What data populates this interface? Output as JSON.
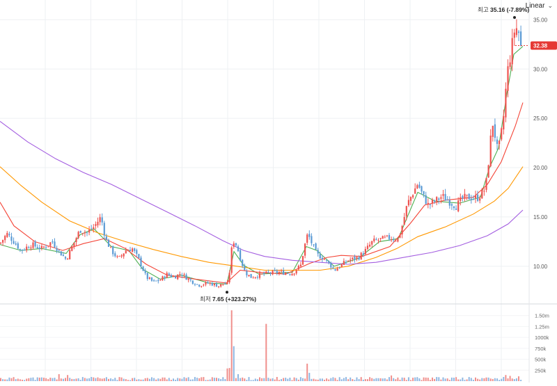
{
  "scale_toggle": {
    "label": "Linear"
  },
  "markers": {
    "high": {
      "prefix": "최고",
      "text": "35.16 (-7.89%)"
    },
    "low": {
      "prefix": "최저",
      "text": "7.65 (+323.27%)"
    }
  },
  "chart_data": {
    "type": "candlestick",
    "last_price_label": "32.38",
    "price_axis": {
      "ticks": [
        "35.00",
        "30.00",
        "25.00",
        "20.00",
        "15.00",
        "10.00"
      ],
      "values": [
        35,
        30,
        25,
        20,
        15,
        10
      ],
      "ylim": [
        6.25,
        37.0
      ]
    },
    "volume_axis": {
      "ticks": [
        "1.50m",
        "1.25m",
        "1000k",
        "750k",
        "500k",
        "250k"
      ],
      "values": [
        1500000,
        1250000,
        1000000,
        750000,
        500000,
        250000
      ],
      "ylim": [
        0,
        1750000
      ]
    },
    "price_keypoints": [
      [
        0,
        12.3
      ],
      [
        10,
        13.3
      ],
      [
        20,
        12.5
      ],
      [
        30,
        11.6
      ],
      [
        45,
        12.2
      ],
      [
        60,
        11.8
      ],
      [
        75,
        12.5
      ],
      [
        85,
        11.5
      ],
      [
        95,
        10.7
      ],
      [
        105,
        12.2
      ],
      [
        115,
        13.7
      ],
      [
        125,
        13.4
      ],
      [
        135,
        14.0
      ],
      [
        145,
        15.0
      ],
      [
        152,
        12.7
      ],
      [
        160,
        11.6
      ],
      [
        170,
        10.7
      ],
      [
        180,
        11.6
      ],
      [
        190,
        11.8
      ],
      [
        200,
        10.6
      ],
      [
        210,
        8.9
      ],
      [
        220,
        8.4
      ],
      [
        230,
        8.6
      ],
      [
        240,
        9.2
      ],
      [
        250,
        8.9
      ],
      [
        260,
        9.3
      ],
      [
        270,
        8.7
      ],
      [
        285,
        8.1
      ],
      [
        300,
        8.3
      ],
      [
        315,
        8.0
      ],
      [
        322,
        8.3
      ],
      [
        326,
        8.0
      ],
      [
        330,
        9.6
      ],
      [
        334,
        12.7
      ],
      [
        340,
        12.1
      ],
      [
        346,
        10.6
      ],
      [
        352,
        9.4
      ],
      [
        360,
        8.9
      ],
      [
        372,
        9.1
      ],
      [
        385,
        9.3
      ],
      [
        400,
        9.4
      ],
      [
        420,
        9.3
      ],
      [
        432,
        10.1
      ],
      [
        437,
        11.9
      ],
      [
        442,
        13.3
      ],
      [
        448,
        12.3
      ],
      [
        455,
        11.2
      ],
      [
        465,
        10.8
      ],
      [
        475,
        10.1
      ],
      [
        480,
        9.6
      ],
      [
        490,
        10.1
      ],
      [
        500,
        10.6
      ],
      [
        515,
        10.9
      ],
      [
        525,
        11.6
      ],
      [
        535,
        12.5
      ],
      [
        545,
        12.7
      ],
      [
        560,
        12.9
      ],
      [
        572,
        12.7
      ],
      [
        578,
        14.2
      ],
      [
        585,
        16.3
      ],
      [
        592,
        17.3
      ],
      [
        600,
        18.4
      ],
      [
        607,
        17.2
      ],
      [
        615,
        16.2
      ],
      [
        625,
        16.6
      ],
      [
        635,
        17.1
      ],
      [
        645,
        16.6
      ],
      [
        655,
        16.1
      ],
      [
        665,
        16.9
      ],
      [
        675,
        17.0
      ],
      [
        685,
        16.9
      ],
      [
        695,
        17.6
      ],
      [
        700,
        19.0
      ],
      [
        703,
        22.0
      ],
      [
        708,
        24.6
      ],
      [
        714,
        21.9
      ],
      [
        718,
        22.3
      ],
      [
        724,
        25.6
      ],
      [
        728,
        29.3
      ],
      [
        732,
        31.0
      ],
      [
        736,
        32.6
      ],
      [
        740,
        34.4
      ],
      [
        745,
        33.7
      ],
      [
        748,
        32.2
      ],
      [
        751,
        32.4
      ]
    ],
    "moving_averages": [
      {
        "color": "#4caf50",
        "points": [
          [
            0,
            12.2
          ],
          [
            30,
            11.6
          ],
          [
            60,
            11.8
          ],
          [
            95,
            11.3
          ],
          [
            115,
            13.2
          ],
          [
            135,
            13.8
          ],
          [
            160,
            12.0
          ],
          [
            185,
            11.6
          ],
          [
            205,
            9.7
          ],
          [
            230,
            8.7
          ],
          [
            260,
            9.1
          ],
          [
            300,
            8.3
          ],
          [
            326,
            8.2
          ],
          [
            336,
            11.5
          ],
          [
            350,
            10.1
          ],
          [
            372,
            9.2
          ],
          [
            420,
            9.4
          ],
          [
            440,
            12.0
          ],
          [
            455,
            11.6
          ],
          [
            480,
            10.0
          ],
          [
            515,
            10.8
          ],
          [
            545,
            12.5
          ],
          [
            572,
            12.8
          ],
          [
            585,
            15.0
          ],
          [
            600,
            17.5
          ],
          [
            625,
            16.6
          ],
          [
            660,
            16.4
          ],
          [
            690,
            17.0
          ],
          [
            703,
            20.0
          ],
          [
            716,
            22.0
          ],
          [
            728,
            27.5
          ],
          [
            738,
            31.5
          ],
          [
            751,
            32.3
          ]
        ]
      },
      {
        "color": "#f44336",
        "points": [
          [
            0,
            16.5
          ],
          [
            20,
            14.1
          ],
          [
            50,
            12.5
          ],
          [
            90,
            11.6
          ],
          [
            120,
            12.3
          ],
          [
            150,
            12.8
          ],
          [
            180,
            11.8
          ],
          [
            210,
            10.2
          ],
          [
            240,
            9.1
          ],
          [
            280,
            8.7
          ],
          [
            325,
            8.3
          ],
          [
            345,
            9.6
          ],
          [
            370,
            9.4
          ],
          [
            410,
            9.2
          ],
          [
            445,
            10.3
          ],
          [
            470,
            10.9
          ],
          [
            490,
            11.1
          ],
          [
            520,
            11.0
          ],
          [
            560,
            12.0
          ],
          [
            590,
            14.4
          ],
          [
            610,
            16.2
          ],
          [
            640,
            16.7
          ],
          [
            680,
            17.0
          ],
          [
            700,
            18.3
          ],
          [
            720,
            20.6
          ],
          [
            740,
            24.2
          ],
          [
            751,
            26.6
          ]
        ]
      },
      {
        "color": "#ff9800",
        "points": [
          [
            0,
            20.1
          ],
          [
            30,
            18.2
          ],
          [
            60,
            16.5
          ],
          [
            100,
            14.6
          ],
          [
            140,
            13.4
          ],
          [
            180,
            12.5
          ],
          [
            220,
            11.7
          ],
          [
            260,
            11.0
          ],
          [
            300,
            10.4
          ],
          [
            340,
            10.0
          ],
          [
            380,
            9.6
          ],
          [
            420,
            9.6
          ],
          [
            460,
            9.6
          ],
          [
            500,
            10.0
          ],
          [
            540,
            10.9
          ],
          [
            570,
            11.8
          ],
          [
            600,
            13.0
          ],
          [
            640,
            14.0
          ],
          [
            680,
            15.3
          ],
          [
            710,
            16.6
          ],
          [
            730,
            17.9
          ],
          [
            751,
            20.1
          ]
        ]
      },
      {
        "color": "#a35de0",
        "points": [
          [
            0,
            24.7
          ],
          [
            40,
            22.6
          ],
          [
            80,
            20.9
          ],
          [
            120,
            19.5
          ],
          [
            160,
            18.3
          ],
          [
            200,
            16.9
          ],
          [
            240,
            15.5
          ],
          [
            280,
            14.1
          ],
          [
            320,
            12.6
          ],
          [
            350,
            11.6
          ],
          [
            380,
            11.0
          ],
          [
            420,
            10.6
          ],
          [
            460,
            10.4
          ],
          [
            500,
            10.2
          ],
          [
            540,
            10.4
          ],
          [
            580,
            10.9
          ],
          [
            620,
            11.4
          ],
          [
            660,
            12.1
          ],
          [
            700,
            13.1
          ],
          [
            730,
            14.3
          ],
          [
            751,
            15.7
          ]
        ]
      }
    ],
    "volume_spikes": [
      [
        331,
        1620000,
        "up"
      ],
      [
        334,
        800000,
        "down"
      ],
      [
        330,
        300000,
        "up"
      ],
      [
        326,
        290000,
        "up"
      ],
      [
        340,
        160000,
        "down"
      ],
      [
        380,
        1310000,
        "up"
      ],
      [
        439,
        400000,
        "up"
      ],
      [
        442,
        190000,
        "down"
      ],
      [
        84,
        160000,
        "up"
      ],
      [
        97,
        140000,
        "up"
      ],
      [
        560,
        130000,
        "up"
      ],
      [
        724,
        140000,
        "up"
      ],
      [
        732,
        120000,
        "up"
      ],
      [
        745,
        110000,
        "up"
      ]
    ],
    "volume_baseline": 60000,
    "colors": {
      "up": "#ef5350",
      "down": "#5b9bd5",
      "price_tag": "#e53935"
    }
  }
}
